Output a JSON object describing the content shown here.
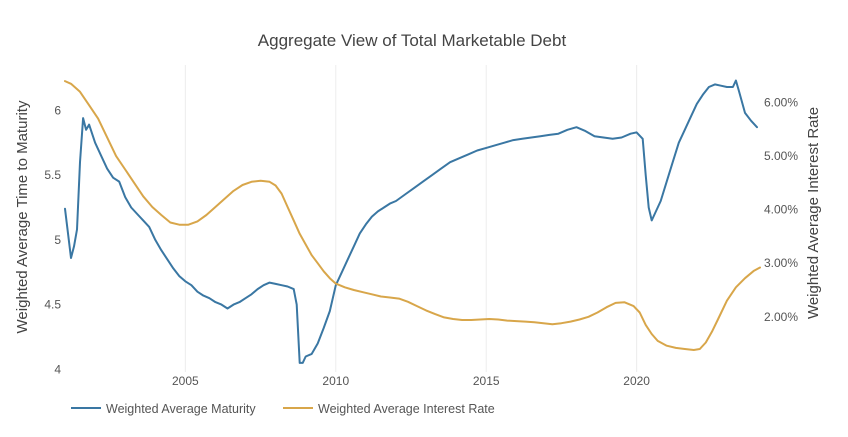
{
  "chart_data": {
    "type": "line",
    "title": "Aggregate View of Total Marketable Debt",
    "ylabel": "Weighted Average Time to Maturity",
    "y2label": "Weighted Average Interest Rate",
    "xlim": [
      2001.0,
      2024.1
    ],
    "ylim": [
      3.98,
      6.35
    ],
    "y2lim": [
      0.97,
      6.7
    ],
    "x_ticks": [
      2005,
      2010,
      2015,
      2020
    ],
    "x_tick_labels": [
      "2005",
      "2010",
      "2015",
      "2020"
    ],
    "y_ticks": [
      4,
      4.5,
      5,
      5.5,
      6
    ],
    "y_tick_labels": [
      "4",
      "4.5",
      "5",
      "5.5",
      "6"
    ],
    "y2_ticks": [
      2,
      3,
      4,
      5,
      6
    ],
    "y2_tick_labels": [
      "2.00%",
      "3.00%",
      "4.00%",
      "5.00%",
      "6.00%"
    ],
    "grid": "vertical",
    "legend_position": "bottom-left",
    "colors": {
      "maturity": "#3a77a3",
      "interest": "#d8a64a"
    },
    "series": [
      {
        "name": "Weighted Average Maturity",
        "axis": "left",
        "color": "#3a77a3",
        "points": [
          [
            2001.0,
            5.24
          ],
          [
            2001.1,
            5.05
          ],
          [
            2001.2,
            4.86
          ],
          [
            2001.3,
            4.95
          ],
          [
            2001.4,
            5.08
          ],
          [
            2001.5,
            5.6
          ],
          [
            2001.6,
            5.94
          ],
          [
            2001.7,
            5.85
          ],
          [
            2001.8,
            5.89
          ],
          [
            2002.0,
            5.75
          ],
          [
            2002.2,
            5.65
          ],
          [
            2002.4,
            5.55
          ],
          [
            2002.6,
            5.48
          ],
          [
            2002.8,
            5.45
          ],
          [
            2003.0,
            5.33
          ],
          [
            2003.2,
            5.25
          ],
          [
            2003.4,
            5.2
          ],
          [
            2003.6,
            5.15
          ],
          [
            2003.8,
            5.1
          ],
          [
            2004.0,
            5.0
          ],
          [
            2004.2,
            4.92
          ],
          [
            2004.4,
            4.85
          ],
          [
            2004.6,
            4.78
          ],
          [
            2004.8,
            4.72
          ],
          [
            2005.0,
            4.68
          ],
          [
            2005.2,
            4.65
          ],
          [
            2005.4,
            4.6
          ],
          [
            2005.6,
            4.57
          ],
          [
            2005.8,
            4.55
          ],
          [
            2006.0,
            4.52
          ],
          [
            2006.2,
            4.5
          ],
          [
            2006.4,
            4.47
          ],
          [
            2006.6,
            4.5
          ],
          [
            2006.8,
            4.52
          ],
          [
            2007.0,
            4.55
          ],
          [
            2007.2,
            4.58
          ],
          [
            2007.4,
            4.62
          ],
          [
            2007.6,
            4.65
          ],
          [
            2007.8,
            4.67
          ],
          [
            2008.0,
            4.66
          ],
          [
            2008.2,
            4.65
          ],
          [
            2008.4,
            4.64
          ],
          [
            2008.6,
            4.62
          ],
          [
            2008.7,
            4.5
          ],
          [
            2008.8,
            4.05
          ],
          [
            2008.9,
            4.05
          ],
          [
            2009.0,
            4.1
          ],
          [
            2009.2,
            4.12
          ],
          [
            2009.4,
            4.2
          ],
          [
            2009.6,
            4.32
          ],
          [
            2009.8,
            4.45
          ],
          [
            2010.0,
            4.65
          ],
          [
            2010.2,
            4.75
          ],
          [
            2010.4,
            4.85
          ],
          [
            2010.6,
            4.95
          ],
          [
            2010.8,
            5.05
          ],
          [
            2011.0,
            5.12
          ],
          [
            2011.2,
            5.18
          ],
          [
            2011.4,
            5.22
          ],
          [
            2011.6,
            5.25
          ],
          [
            2011.8,
            5.28
          ],
          [
            2012.0,
            5.3
          ],
          [
            2012.3,
            5.35
          ],
          [
            2012.6,
            5.4
          ],
          [
            2012.9,
            5.45
          ],
          [
            2013.2,
            5.5
          ],
          [
            2013.5,
            5.55
          ],
          [
            2013.8,
            5.6
          ],
          [
            2014.1,
            5.63
          ],
          [
            2014.4,
            5.66
          ],
          [
            2014.7,
            5.69
          ],
          [
            2015.0,
            5.71
          ],
          [
            2015.3,
            5.73
          ],
          [
            2015.6,
            5.75
          ],
          [
            2015.9,
            5.77
          ],
          [
            2016.2,
            5.78
          ],
          [
            2016.5,
            5.79
          ],
          [
            2016.8,
            5.8
          ],
          [
            2017.1,
            5.81
          ],
          [
            2017.4,
            5.82
          ],
          [
            2017.7,
            5.85
          ],
          [
            2018.0,
            5.87
          ],
          [
            2018.3,
            5.84
          ],
          [
            2018.6,
            5.8
          ],
          [
            2018.9,
            5.79
          ],
          [
            2019.2,
            5.78
          ],
          [
            2019.5,
            5.79
          ],
          [
            2019.8,
            5.82
          ],
          [
            2020.0,
            5.83
          ],
          [
            2020.2,
            5.78
          ],
          [
            2020.3,
            5.5
          ],
          [
            2020.4,
            5.25
          ],
          [
            2020.5,
            5.15
          ],
          [
            2020.6,
            5.2
          ],
          [
            2020.8,
            5.3
          ],
          [
            2021.0,
            5.45
          ],
          [
            2021.2,
            5.6
          ],
          [
            2021.4,
            5.75
          ],
          [
            2021.6,
            5.85
          ],
          [
            2021.8,
            5.95
          ],
          [
            2022.0,
            6.05
          ],
          [
            2022.2,
            6.12
          ],
          [
            2022.4,
            6.18
          ],
          [
            2022.6,
            6.2
          ],
          [
            2022.8,
            6.19
          ],
          [
            2023.0,
            6.18
          ],
          [
            2023.2,
            6.18
          ],
          [
            2023.3,
            6.23
          ],
          [
            2023.4,
            6.15
          ],
          [
            2023.6,
            5.98
          ],
          [
            2023.8,
            5.92
          ],
          [
            2024.0,
            5.87
          ]
        ]
      },
      {
        "name": "Weighted Average Interest Rate",
        "axis": "right",
        "color": "#d8a64a",
        "points": [
          [
            2001.0,
            6.4
          ],
          [
            2001.2,
            6.35
          ],
          [
            2001.5,
            6.2
          ],
          [
            2001.8,
            5.95
          ],
          [
            2002.1,
            5.7
          ],
          [
            2002.4,
            5.35
          ],
          [
            2002.7,
            5.0
          ],
          [
            2003.0,
            4.75
          ],
          [
            2003.3,
            4.5
          ],
          [
            2003.6,
            4.25
          ],
          [
            2003.9,
            4.05
          ],
          [
            2004.2,
            3.9
          ],
          [
            2004.5,
            3.76
          ],
          [
            2004.8,
            3.72
          ],
          [
            2005.1,
            3.72
          ],
          [
            2005.4,
            3.78
          ],
          [
            2005.7,
            3.9
          ],
          [
            2006.0,
            4.05
          ],
          [
            2006.3,
            4.2
          ],
          [
            2006.6,
            4.35
          ],
          [
            2006.9,
            4.46
          ],
          [
            2007.2,
            4.52
          ],
          [
            2007.5,
            4.54
          ],
          [
            2007.8,
            4.52
          ],
          [
            2008.0,
            4.45
          ],
          [
            2008.2,
            4.3
          ],
          [
            2008.4,
            4.05
          ],
          [
            2008.6,
            3.8
          ],
          [
            2008.8,
            3.55
          ],
          [
            2009.0,
            3.35
          ],
          [
            2009.2,
            3.15
          ],
          [
            2009.4,
            3.0
          ],
          [
            2009.6,
            2.85
          ],
          [
            2009.8,
            2.72
          ],
          [
            2010.0,
            2.62
          ],
          [
            2010.3,
            2.55
          ],
          [
            2010.6,
            2.5
          ],
          [
            2010.9,
            2.46
          ],
          [
            2011.2,
            2.42
          ],
          [
            2011.5,
            2.38
          ],
          [
            2011.8,
            2.36
          ],
          [
            2012.1,
            2.34
          ],
          [
            2012.4,
            2.28
          ],
          [
            2012.7,
            2.2
          ],
          [
            2013.0,
            2.12
          ],
          [
            2013.3,
            2.05
          ],
          [
            2013.6,
            1.99
          ],
          [
            2013.9,
            1.96
          ],
          [
            2014.2,
            1.94
          ],
          [
            2014.5,
            1.94
          ],
          [
            2014.8,
            1.95
          ],
          [
            2015.1,
            1.96
          ],
          [
            2015.4,
            1.95
          ],
          [
            2015.7,
            1.93
          ],
          [
            2016.0,
            1.92
          ],
          [
            2016.3,
            1.91
          ],
          [
            2016.6,
            1.9
          ],
          [
            2016.9,
            1.88
          ],
          [
            2017.2,
            1.86
          ],
          [
            2017.5,
            1.88
          ],
          [
            2017.8,
            1.91
          ],
          [
            2018.1,
            1.95
          ],
          [
            2018.4,
            2.0
          ],
          [
            2018.7,
            2.08
          ],
          [
            2019.0,
            2.18
          ],
          [
            2019.3,
            2.26
          ],
          [
            2019.6,
            2.27
          ],
          [
            2019.9,
            2.2
          ],
          [
            2020.1,
            2.08
          ],
          [
            2020.3,
            1.85
          ],
          [
            2020.5,
            1.68
          ],
          [
            2020.7,
            1.55
          ],
          [
            2021.0,
            1.46
          ],
          [
            2021.3,
            1.42
          ],
          [
            2021.6,
            1.4
          ],
          [
            2021.9,
            1.38
          ],
          [
            2022.1,
            1.4
          ],
          [
            2022.3,
            1.52
          ],
          [
            2022.5,
            1.72
          ],
          [
            2022.7,
            1.95
          ],
          [
            2023.0,
            2.3
          ],
          [
            2023.3,
            2.55
          ],
          [
            2023.6,
            2.72
          ],
          [
            2023.9,
            2.86
          ],
          [
            2024.1,
            2.92
          ]
        ]
      }
    ]
  }
}
